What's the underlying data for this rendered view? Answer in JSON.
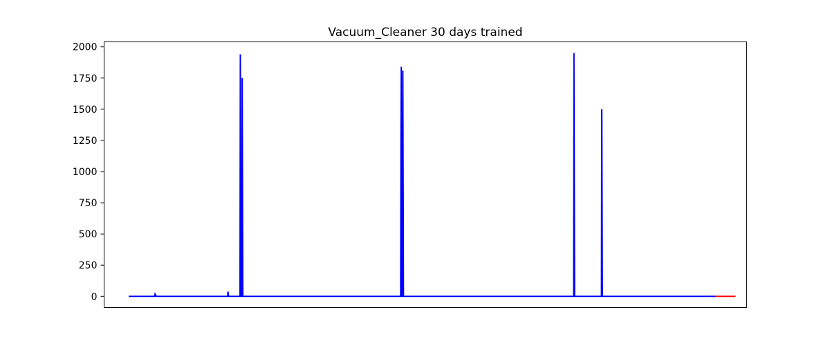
{
  "chart_data": {
    "type": "line",
    "title": "Vacuum_Cleaner 30 days trained",
    "xlabel": "",
    "ylabel": "",
    "x_ticks_shown": false,
    "xlim": [
      -4,
      100
    ],
    "ylim": [
      -90,
      2040
    ],
    "yticks": [
      0,
      250,
      500,
      750,
      1000,
      1250,
      1500,
      1750,
      2000
    ],
    "grid": false,
    "series": [
      {
        "color": "#0000ff",
        "points": [
          [
            0,
            0
          ],
          [
            4.2,
            0
          ],
          [
            4.25,
            18
          ],
          [
            4.35,
            10
          ],
          [
            4.45,
            0
          ],
          [
            16.0,
            0
          ],
          [
            16.05,
            38
          ],
          [
            16.15,
            0
          ],
          [
            18.0,
            0
          ],
          [
            18.05,
            1940
          ],
          [
            18.15,
            0
          ],
          [
            18.3,
            0
          ],
          [
            18.35,
            1750
          ],
          [
            18.45,
            0
          ],
          [
            44.0,
            0
          ],
          [
            44.05,
            1240
          ],
          [
            44.1,
            1840
          ],
          [
            44.15,
            0
          ],
          [
            44.3,
            0
          ],
          [
            44.35,
            1810
          ],
          [
            44.45,
            0
          ],
          [
            72.0,
            0
          ],
          [
            72.05,
            1950
          ],
          [
            72.15,
            0
          ],
          [
            76.5,
            0
          ],
          [
            76.55,
            1500
          ],
          [
            76.65,
            0
          ],
          [
            95.0,
            0
          ]
        ]
      },
      {
        "color": "#ff0000",
        "points": [
          [
            94.9,
            0
          ],
          [
            98.2,
            0
          ]
        ]
      }
    ]
  }
}
